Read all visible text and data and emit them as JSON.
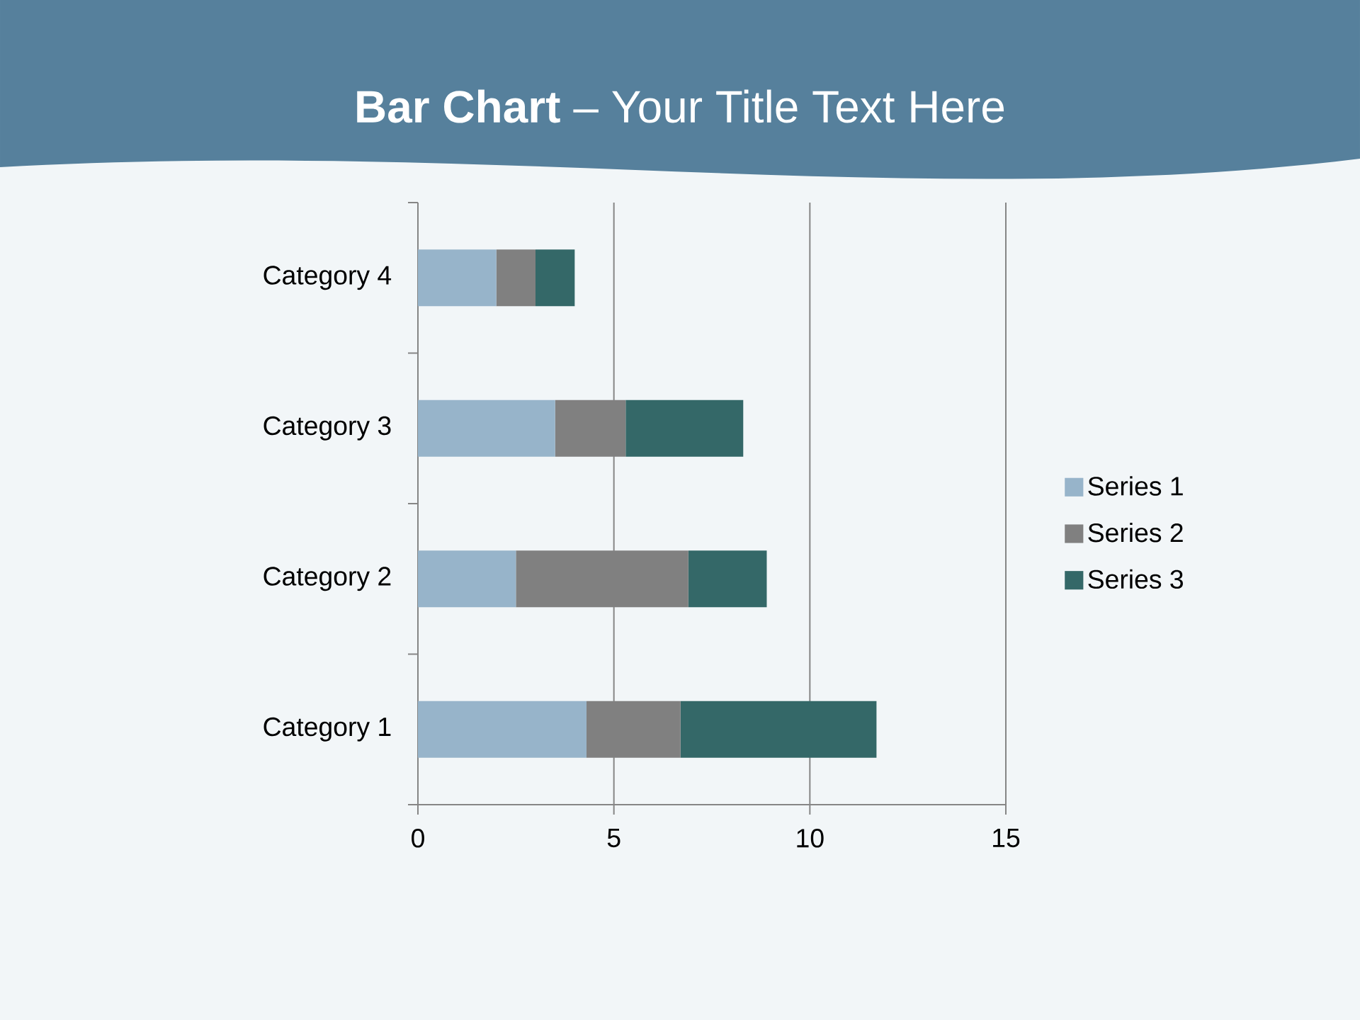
{
  "chart_data": {
    "type": "bar",
    "title": "**Bar Chart** – Your Title Text Here",
    "orientation": "horizontal",
    "stacked": true,
    "categories": [
      "Category 4",
      "Category 3",
      "Category 2",
      "Category 1"
    ],
    "series": [
      {
        "name": "Series 1",
        "color": "#97b4ca",
        "values": [
          2,
          3.5,
          2.5,
          4.3
        ]
      },
      {
        "name": "Series 2",
        "color": "#808080",
        "values": [
          1,
          1.8,
          4.4,
          2.4
        ]
      },
      {
        "name": "Series 3",
        "color": "#346868",
        "values": [
          1,
          3,
          2,
          5
        ]
      }
    ],
    "xlim": [
      0,
      15
    ],
    "xticks": [
      0,
      5,
      10,
      15
    ],
    "grid": "x",
    "legend": "right"
  }
}
